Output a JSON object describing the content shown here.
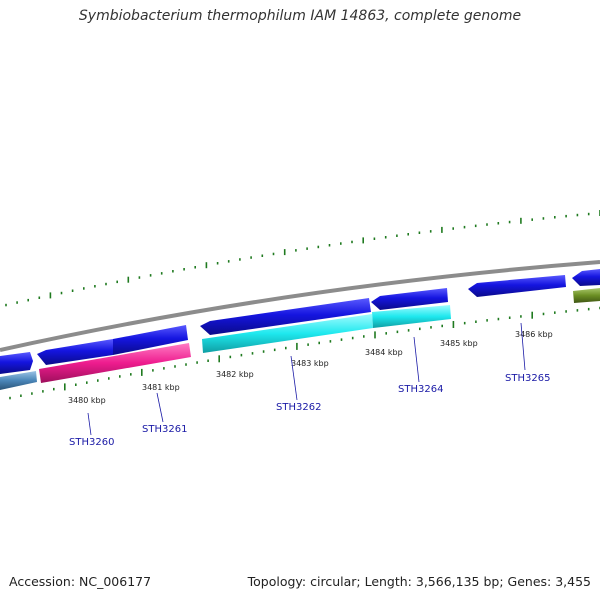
{
  "title": "Symbiobacterium thermophilum IAM 14863, complete genome",
  "footer": {
    "accession": "Accession: NC_006177",
    "summary": "Topology: circular; Length: 3,566,135 bp; Genes: 3,455"
  },
  "colors": {
    "backbone": "#8c8c8c",
    "tick": "#1f7a1f",
    "gene_blue": "#1515e0",
    "gene_cyan": "#1ee8ee",
    "gene_pink": "#ee1c8e",
    "gene_steel": "#4a86b8",
    "gene_olive": "#6b8e23",
    "label": "#1a1aa6"
  },
  "scale": {
    "unit": "kbp",
    "kbp_labels": [
      "3480 kbp",
      "3481 kbp",
      "3482 kbp",
      "3483 kbp",
      "3484 kbp",
      "3485 kbp",
      "3486 kbp"
    ]
  },
  "gene_labels": [
    "STH3260",
    "STH3261",
    "STH3262",
    "STH3264",
    "STH3265"
  ]
}
